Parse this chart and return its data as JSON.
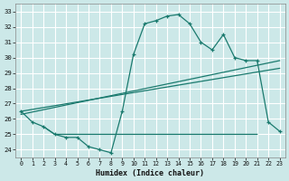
{
  "xlabel": "Humidex (Indice chaleur)",
  "x_ticks": [
    0,
    1,
    2,
    3,
    4,
    5,
    6,
    7,
    8,
    9,
    10,
    11,
    12,
    13,
    14,
    15,
    16,
    17,
    18,
    19,
    20,
    21,
    22,
    23
  ],
  "y_ticks": [
    24,
    25,
    26,
    27,
    28,
    29,
    30,
    31,
    32,
    33
  ],
  "xlim": [
    -0.5,
    23.5
  ],
  "ylim": [
    23.5,
    33.5
  ],
  "line_color": "#1a7a6e",
  "bg_color": "#cce8e8",
  "grid_color": "#e8f4f4",
  "main_curve": {
    "x": [
      0,
      1,
      2,
      3,
      4,
      5,
      6,
      7,
      8,
      9,
      10,
      11,
      12,
      13,
      14,
      15,
      16,
      17,
      18,
      19,
      20,
      21,
      22,
      23
    ],
    "y": [
      26.5,
      25.8,
      25.5,
      25.0,
      24.8,
      24.8,
      24.2,
      24.0,
      23.8,
      26.5,
      30.2,
      32.2,
      32.4,
      32.7,
      32.8,
      32.2,
      31.0,
      30.5,
      31.5,
      30.0,
      29.8,
      29.8,
      25.8,
      25.2
    ]
  },
  "flat_line": {
    "x": [
      2,
      3,
      4,
      5,
      6,
      7,
      8,
      9,
      10,
      11,
      12,
      13,
      14,
      15,
      16,
      17,
      18,
      19,
      20,
      21
    ],
    "y": [
      25.5,
      25.0,
      25.0,
      25.0,
      25.0,
      25.0,
      25.0,
      25.0,
      25.0,
      25.0,
      25.0,
      25.0,
      25.0,
      25.0,
      25.0,
      25.0,
      25.0,
      25.0,
      25.0,
      25.0
    ]
  },
  "diag_line1": {
    "x": [
      0,
      23
    ],
    "y": [
      26.3,
      29.8
    ]
  },
  "diag_line2": {
    "x": [
      0,
      23
    ],
    "y": [
      26.5,
      29.3
    ]
  }
}
